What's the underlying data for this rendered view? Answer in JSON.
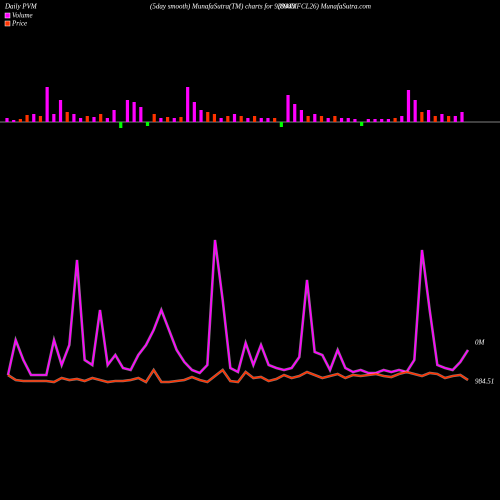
{
  "chart_data": [
    {
      "type": "bar",
      "title": "Daily PVM",
      "subtitle": "(5day smooth) MunafaSutra(TM) charts for 939443",
      "source": "(890MFCL26) MunafaSutra.com",
      "values": [
        4,
        2,
        3,
        7,
        8,
        6,
        35,
        8,
        22,
        10,
        8,
        4,
        6,
        5,
        8,
        4,
        12,
        -6,
        22,
        20,
        15,
        -4,
        8,
        4,
        5,
        4,
        5,
        35,
        20,
        12,
        10,
        8,
        4,
        6,
        8,
        6,
        4,
        6,
        4,
        4,
        4,
        -5,
        27,
        18,
        12,
        6,
        8,
        6,
        4,
        6,
        4,
        4,
        3,
        -4,
        3,
        3,
        3,
        3,
        4,
        6,
        32,
        22,
        10,
        12,
        6,
        8,
        6,
        6,
        10
      ],
      "colors": [
        "#ff00ff",
        "#ff00ff",
        "#ff3300",
        "#ff3300",
        "#ff00ff",
        "#ff3300",
        "#ff00ff",
        "#ff00ff",
        "#ff00ff",
        "#ff3300",
        "#ff00ff",
        "#ff00ff",
        "#ff3300",
        "#ff00ff",
        "#ff3300",
        "#ff00ff",
        "#ff00ff",
        "#00ff00",
        "#ff00ff",
        "#ff00ff",
        "#ff00ff",
        "#00ff00",
        "#ff3300",
        "#ff00ff",
        "#ff3300",
        "#ff00ff",
        "#ff3300",
        "#ff00ff",
        "#ff00ff",
        "#ff00ff",
        "#ff3300",
        "#ff3300",
        "#ff00ff",
        "#ff3300",
        "#ff00ff",
        "#ff3300",
        "#ff00ff",
        "#ff3300",
        "#ff00ff",
        "#ff00ff",
        "#ff3300",
        "#00ff00",
        "#ff00ff",
        "#ff00ff",
        "#ff00ff",
        "#ff3300",
        "#ff00ff",
        "#ff3300",
        "#ff00ff",
        "#ff3300",
        "#ff00ff",
        "#ff00ff",
        "#ff00ff",
        "#00ff00",
        "#ff00ff",
        "#ff00ff",
        "#ff00ff",
        "#ff00ff",
        "#ff3300",
        "#ff00ff",
        "#ff00ff",
        "#ff00ff",
        "#ff3300",
        "#ff00ff",
        "#ff3300",
        "#ff00ff",
        "#ff3300",
        "#ff00ff",
        "#ff00ff"
      ],
      "ylim": [
        -40,
        40
      ]
    },
    {
      "type": "line",
      "ylim": [
        0,
        160
      ],
      "series": [
        {
          "name": "Volume",
          "color": "#ff00ff",
          "end_label": "0M",
          "values": [
            15,
            50,
            30,
            15,
            15,
            15,
            50,
            25,
            45,
            130,
            30,
            25,
            80,
            25,
            35,
            22,
            20,
            35,
            45,
            60,
            80,
            60,
            40,
            28,
            20,
            17,
            25,
            150,
            90,
            22,
            18,
            47,
            25,
            45,
            25,
            22,
            20,
            22,
            33,
            110,
            38,
            35,
            20,
            40,
            22,
            18,
            20,
            17,
            17,
            20,
            18,
            20,
            18,
            30,
            140,
            80,
            25,
            22,
            20,
            28,
            40
          ]
        },
        {
          "name": "Price",
          "color": "#ff3300",
          "end_label": "984.51",
          "values": [
            15,
            10,
            9,
            9,
            9,
            9,
            8,
            12,
            10,
            11,
            9,
            12,
            10,
            8,
            9,
            9,
            10,
            12,
            8,
            20,
            8,
            8,
            9,
            10,
            13,
            10,
            8,
            14,
            20,
            9,
            8,
            18,
            12,
            13,
            9,
            11,
            15,
            12,
            14,
            18,
            15,
            12,
            14,
            16,
            12,
            15,
            14,
            15,
            16,
            14,
            13,
            16,
            18,
            16,
            14,
            17,
            16,
            12,
            14,
            15,
            10
          ]
        }
      ]
    }
  ]
}
